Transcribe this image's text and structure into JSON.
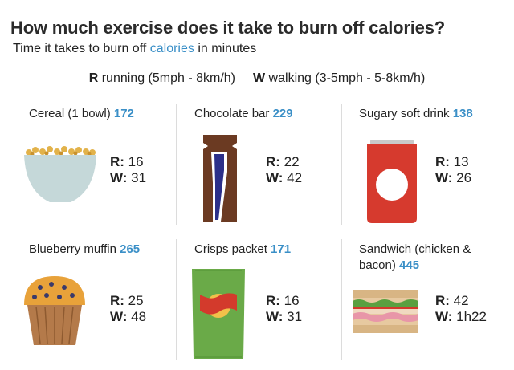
{
  "header": {
    "title": "How much exercise does it take to burn off calories?",
    "subtitle_pre": "Time it takes to burn off ",
    "subtitle_link": "calories",
    "subtitle_post": " in minutes"
  },
  "legend": {
    "running_key": "R",
    "running_text": " running (5mph - 8km/h)",
    "walking_key": "W",
    "walking_text": " walking (3-5mph - 5-8km/h)"
  },
  "items": [
    {
      "name": "Cereal (1 bowl) ",
      "calories": "172",
      "r_label": "R:",
      "r_value": " 16",
      "w_label": "W:",
      "w_value": " 31",
      "icon": "cereal-bowl-icon"
    },
    {
      "name": "Chocolate bar ",
      "calories": "229",
      "r_label": "R:",
      "r_value": " 22",
      "w_label": "W:",
      "w_value": " 42",
      "icon": "chocolate-bar-icon"
    },
    {
      "name": "Sugary soft drink ",
      "calories": "138",
      "r_label": "R:",
      "r_value": " 13",
      "w_label": "W:",
      "w_value": " 26",
      "icon": "soda-can-icon"
    },
    {
      "name": "Blueberry muffin ",
      "calories": "265",
      "r_label": "R:",
      "r_value": " 25",
      "w_label": "W:",
      "w_value": " 48",
      "icon": "muffin-icon"
    },
    {
      "name": "Crisps packet ",
      "calories": "171",
      "r_label": "R:",
      "r_value": " 16",
      "w_label": "W:",
      "w_value": " 31",
      "icon": "crisps-packet-icon"
    },
    {
      "name": "Sandwich (chicken & bacon) ",
      "calories": "445",
      "r_label": "R:",
      "r_value": " 42",
      "w_label": "W:",
      "w_value": " 1h22",
      "icon": "sandwich-icon"
    }
  ],
  "colors": {
    "accent": "#3a8fc7",
    "bowl": "#c5d8d9",
    "chocolate": "#6b3a22",
    "can_red": "#d63a2e",
    "muffin_case": "#b47a4a",
    "crisps_green": "#6aaa48",
    "bread": "#e7c9a0"
  }
}
